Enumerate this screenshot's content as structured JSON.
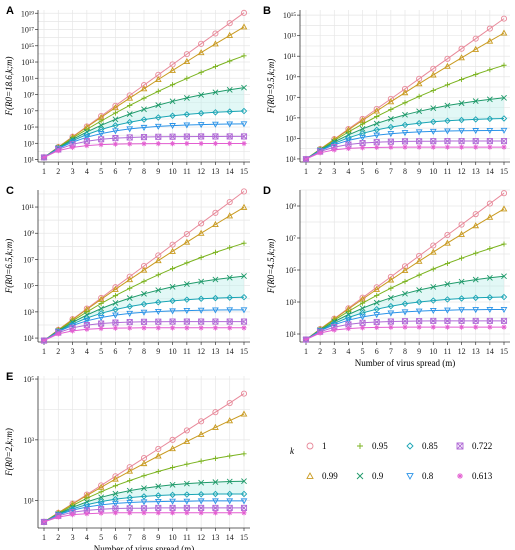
{
  "figure": {
    "x_axis_title": "Number of virus spread (m)",
    "legend": {
      "title": "k",
      "entries": [
        {
          "label": "1",
          "marker": "circle",
          "color": "#e8899a"
        },
        {
          "label": "0.99",
          "marker": "triangle",
          "color": "#c99a1f"
        },
        {
          "label": "0.95",
          "marker": "plus",
          "color": "#7bb31f"
        },
        {
          "label": "0.9",
          "marker": "x",
          "color": "#1f9a6a"
        },
        {
          "label": "0.85",
          "marker": "diamond",
          "color": "#1aa5b5"
        },
        {
          "label": "0.8",
          "marker": "triangle-down",
          "color": "#2a93e8"
        },
        {
          "label": "0.722",
          "marker": "square-x",
          "color": "#b06ad6"
        },
        {
          "label": "0.613",
          "marker": "asterisk",
          "color": "#e35fd1"
        }
      ]
    }
  },
  "chart_data": [
    {
      "panel": "A",
      "type": "line",
      "ylabel": "F(R0=18.6,k;m)",
      "yscale": "log",
      "x": [
        1,
        2,
        3,
        4,
        5,
        6,
        7,
        8,
        9,
        10,
        11,
        12,
        13,
        14,
        15
      ],
      "xlim": [
        1,
        15
      ],
      "ylim_exp": [
        0.7,
        19.4
      ],
      "yticks_exp": [
        1,
        3,
        5,
        7,
        9,
        11,
        13,
        15,
        17,
        19
      ],
      "grid": true,
      "series": [
        {
          "name": "1",
          "log10_values": [
            1.27,
            2.54,
            3.81,
            5.08,
            6.35,
            7.62,
            8.89,
            10.16,
            11.43,
            12.7,
            13.97,
            15.24,
            16.51,
            17.78,
            19.05
          ]
        },
        {
          "name": "0.99",
          "log10_values": [
            1.27,
            2.53,
            3.77,
            5.0,
            6.2,
            7.39,
            8.56,
            9.71,
            10.85,
            11.97,
            13.07,
            14.16,
            15.23,
            16.28,
            17.32
          ]
        },
        {
          "name": "0.95",
          "log10_values": [
            1.27,
            2.5,
            3.64,
            4.72,
            5.75,
            6.73,
            7.66,
            8.55,
            9.4,
            10.21,
            10.99,
            11.73,
            12.44,
            13.12,
            13.77
          ]
        },
        {
          "name": "0.9",
          "log10_values": [
            1.27,
            2.45,
            3.48,
            4.4,
            5.22,
            5.95,
            6.6,
            7.18,
            7.7,
            8.17,
            8.58,
            8.95,
            9.28,
            9.58,
            9.85
          ]
        },
        {
          "name": "0.85",
          "log10_values": [
            1.27,
            2.4,
            3.32,
            4.08,
            4.7,
            5.2,
            5.6,
            5.92,
            6.18,
            6.39,
            6.56,
            6.7,
            6.81,
            6.9,
            6.97
          ]
        },
        {
          "name": "0.8",
          "log10_values": [
            1.27,
            2.35,
            3.15,
            3.75,
            4.2,
            4.53,
            4.77,
            4.95,
            5.08,
            5.18,
            5.25,
            5.3,
            5.34,
            5.37,
            5.39
          ]
        },
        {
          "name": "0.722",
          "log10_values": [
            1.27,
            2.25,
            2.88,
            3.26,
            3.5,
            3.64,
            3.72,
            3.77,
            3.8,
            3.82,
            3.83,
            3.84,
            3.84,
            3.85,
            3.85
          ]
        },
        {
          "name": "0.613",
          "log10_values": [
            1.27,
            2.1,
            2.5,
            2.72,
            2.84,
            2.9,
            2.93,
            2.95,
            2.96,
            2.96,
            2.97,
            2.97,
            2.97,
            2.97,
            2.97
          ]
        }
      ]
    },
    {
      "panel": "B",
      "type": "line",
      "ylabel": "F(R0=9.5,k;m)",
      "yscale": "log",
      "x": [
        1,
        2,
        3,
        4,
        5,
        6,
        7,
        8,
        9,
        10,
        11,
        12,
        13,
        14,
        15
      ],
      "xlim": [
        1,
        15
      ],
      "ylim_exp": [
        0.7,
        15.5
      ],
      "yticks_exp": [
        1,
        3,
        5,
        7,
        9,
        11,
        13,
        15
      ],
      "grid": true,
      "series": [
        {
          "name": "1",
          "log10_values": [
            0.98,
            1.96,
            2.93,
            3.91,
            4.89,
            5.87,
            6.84,
            7.82,
            8.8,
            9.78,
            10.75,
            11.73,
            12.71,
            13.69,
            14.66
          ]
        },
        {
          "name": "0.99",
          "log10_values": [
            0.98,
            1.95,
            2.9,
            3.84,
            4.76,
            5.67,
            6.57,
            7.45,
            8.32,
            9.18,
            10.02,
            10.85,
            11.67,
            12.47,
            13.26
          ]
        },
        {
          "name": "0.95",
          "log10_values": [
            0.98,
            1.92,
            2.8,
            3.62,
            4.4,
            5.13,
            5.82,
            6.47,
            7.09,
            7.67,
            8.22,
            8.74,
            9.23,
            9.69,
            10.12
          ]
        },
        {
          "name": "0.9",
          "log10_values": [
            0.98,
            1.88,
            2.66,
            3.34,
            3.93,
            4.45,
            4.9,
            5.3,
            5.64,
            5.94,
            6.2,
            6.43,
            6.63,
            6.8,
            6.95
          ]
        },
        {
          "name": "0.85",
          "log10_values": [
            0.98,
            1.84,
            2.52,
            3.06,
            3.49,
            3.83,
            4.1,
            4.31,
            4.48,
            4.61,
            4.71,
            4.79,
            4.85,
            4.9,
            4.94
          ]
        },
        {
          "name": "0.8",
          "log10_values": [
            0.98,
            1.8,
            2.38,
            2.8,
            3.1,
            3.31,
            3.46,
            3.56,
            3.63,
            3.68,
            3.72,
            3.74,
            3.76,
            3.77,
            3.78
          ]
        },
        {
          "name": "0.722",
          "log10_values": [
            0.98,
            1.72,
            2.15,
            2.4,
            2.55,
            2.63,
            2.68,
            2.71,
            2.72,
            2.73,
            2.74,
            2.74,
            2.74,
            2.74,
            2.74
          ]
        },
        {
          "name": "0.613",
          "log10_values": [
            0.98,
            1.6,
            1.88,
            2.02,
            2.09,
            2.12,
            2.14,
            2.15,
            2.15,
            2.15,
            2.15,
            2.15,
            2.15,
            2.15,
            2.15
          ]
        }
      ]
    },
    {
      "panel": "C",
      "type": "line",
      "ylabel": "F(R0=6.5,k;m)",
      "yscale": "log",
      "x": [
        1,
        2,
        3,
        4,
        5,
        6,
        7,
        8,
        9,
        10,
        11,
        12,
        13,
        14,
        15
      ],
      "xlim": [
        1,
        15
      ],
      "ylim_exp": [
        0.7,
        12.3
      ],
      "yticks_exp": [
        1,
        3,
        5,
        7,
        9,
        11
      ],
      "grid": true,
      "series": [
        {
          "name": "1",
          "log10_values": [
            0.81,
            1.63,
            2.44,
            3.25,
            4.06,
            4.88,
            5.69,
            6.5,
            7.31,
            8.13,
            8.94,
            9.75,
            10.56,
            11.38,
            12.19
          ]
        },
        {
          "name": "0.99",
          "log10_values": [
            0.81,
            1.62,
            2.41,
            3.19,
            3.96,
            4.72,
            5.46,
            6.19,
            6.91,
            7.62,
            8.32,
            9.0,
            9.67,
            10.33,
            10.98
          ]
        },
        {
          "name": "0.95",
          "log10_values": [
            0.81,
            1.59,
            2.32,
            3.0,
            3.64,
            4.24,
            4.8,
            5.33,
            5.83,
            6.3,
            6.74,
            7.15,
            7.54,
            7.9,
            8.24
          ]
        },
        {
          "name": "0.9",
          "log10_values": [
            0.81,
            1.55,
            2.2,
            2.76,
            3.25,
            3.68,
            4.05,
            4.38,
            4.66,
            4.91,
            5.12,
            5.31,
            5.47,
            5.61,
            5.73
          ]
        },
        {
          "name": "0.85",
          "log10_values": [
            0.81,
            1.52,
            2.08,
            2.53,
            2.89,
            3.18,
            3.41,
            3.59,
            3.73,
            3.84,
            3.93,
            4.0,
            4.05,
            4.09,
            4.12
          ]
        },
        {
          "name": "0.8",
          "log10_values": [
            0.81,
            1.49,
            1.97,
            2.32,
            2.57,
            2.75,
            2.88,
            2.97,
            3.03,
            3.07,
            3.1,
            3.12,
            3.14,
            3.15,
            3.15
          ]
        },
        {
          "name": "0.722",
          "log10_values": [
            0.81,
            1.42,
            1.78,
            1.99,
            2.11,
            2.18,
            2.22,
            2.24,
            2.25,
            2.26,
            2.26,
            2.26,
            2.26,
            2.26,
            2.26
          ]
        },
        {
          "name": "0.613",
          "log10_values": [
            0.81,
            1.32,
            1.55,
            1.67,
            1.73,
            1.76,
            1.77,
            1.78,
            1.78,
            1.78,
            1.78,
            1.78,
            1.78,
            1.78,
            1.78
          ]
        }
      ]
    },
    {
      "panel": "D",
      "type": "line",
      "ylabel": "F(R0=4.5,k;m)",
      "yscale": "log",
      "x": [
        1,
        2,
        3,
        4,
        5,
        6,
        7,
        8,
        9,
        10,
        11,
        12,
        13,
        14,
        15
      ],
      "xlim": [
        1,
        15
      ],
      "ylim_exp": [
        0.5,
        10.0
      ],
      "yticks_exp": [
        1,
        3,
        5,
        7,
        9
      ],
      "grid": true,
      "series": [
        {
          "name": "1",
          "log10_values": [
            0.65,
            1.31,
            1.96,
            2.61,
            3.27,
            3.92,
            4.57,
            5.23,
            5.88,
            6.53,
            7.19,
            7.84,
            8.49,
            9.15,
            9.8
          ]
        },
        {
          "name": "0.99",
          "log10_values": [
            0.65,
            1.3,
            1.94,
            2.56,
            3.18,
            3.79,
            4.38,
            4.97,
            5.55,
            6.12,
            6.68,
            7.23,
            7.77,
            8.3,
            8.82
          ]
        },
        {
          "name": "0.95",
          "log10_values": [
            0.65,
            1.28,
            1.87,
            2.41,
            2.93,
            3.41,
            3.86,
            4.28,
            4.68,
            5.06,
            5.41,
            5.74,
            6.05,
            6.34,
            6.62
          ]
        },
        {
          "name": "0.9",
          "log10_values": [
            0.65,
            1.25,
            1.77,
            2.22,
            2.61,
            2.96,
            3.26,
            3.52,
            3.75,
            3.94,
            4.12,
            4.27,
            4.4,
            4.51,
            4.61
          ]
        },
        {
          "name": "0.85",
          "log10_values": [
            0.65,
            1.22,
            1.67,
            2.03,
            2.32,
            2.55,
            2.74,
            2.89,
            3.0,
            3.09,
            3.16,
            3.22,
            3.26,
            3.29,
            3.31
          ]
        },
        {
          "name": "0.8",
          "log10_values": [
            0.65,
            1.2,
            1.58,
            1.86,
            2.07,
            2.21,
            2.31,
            2.38,
            2.43,
            2.47,
            2.49,
            2.51,
            2.52,
            2.53,
            2.53
          ]
        },
        {
          "name": "0.722",
          "log10_values": [
            0.65,
            1.14,
            1.43,
            1.6,
            1.7,
            1.75,
            1.78,
            1.8,
            1.81,
            1.82,
            1.82,
            1.82,
            1.82,
            1.82,
            1.82
          ]
        },
        {
          "name": "0.613",
          "log10_values": [
            0.65,
            1.06,
            1.25,
            1.34,
            1.39,
            1.41,
            1.42,
            1.43,
            1.43,
            1.43,
            1.43,
            1.43,
            1.43,
            1.43,
            1.43
          ]
        }
      ]
    },
    {
      "panel": "E",
      "type": "line",
      "ylabel": "F(R0=2,k;m)",
      "yscale": "log",
      "x": [
        1,
        2,
        3,
        4,
        5,
        6,
        7,
        8,
        9,
        10,
        11,
        12,
        13,
        14,
        15
      ],
      "xlim": [
        1,
        15
      ],
      "ylim_exp": [
        0.1,
        5.1
      ],
      "yticks_exp": [
        1,
        3,
        5
      ],
      "grid": true,
      "series": [
        {
          "name": "1",
          "log10_values": [
            0.3,
            0.6,
            0.9,
            1.2,
            1.5,
            1.8,
            2.1,
            2.4,
            2.7,
            3.0,
            3.31,
            3.61,
            3.91,
            4.21,
            4.52
          ]
        },
        {
          "name": "0.99",
          "log10_values": [
            0.3,
            0.6,
            0.89,
            1.17,
            1.44,
            1.71,
            1.97,
            2.22,
            2.47,
            2.71,
            2.95,
            3.18,
            3.41,
            3.63,
            3.85
          ]
        },
        {
          "name": "0.95",
          "log10_values": [
            0.3,
            0.58,
            0.84,
            1.08,
            1.29,
            1.49,
            1.66,
            1.82,
            1.96,
            2.09,
            2.2,
            2.3,
            2.39,
            2.47,
            2.54
          ]
        },
        {
          "name": "0.9",
          "log10_values": [
            0.3,
            0.56,
            0.78,
            0.96,
            1.11,
            1.23,
            1.33,
            1.41,
            1.47,
            1.52,
            1.56,
            1.59,
            1.61,
            1.63,
            1.64
          ]
        },
        {
          "name": "0.85",
          "log10_values": [
            0.3,
            0.55,
            0.73,
            0.87,
            0.97,
            1.05,
            1.1,
            1.14,
            1.17,
            1.19,
            1.2,
            1.21,
            1.22,
            1.22,
            1.22
          ]
        },
        {
          "name": "0.8",
          "log10_values": [
            0.3,
            0.53,
            0.69,
            0.79,
            0.86,
            0.91,
            0.94,
            0.96,
            0.97,
            0.98,
            0.98,
            0.99,
            0.99,
            0.99,
            0.99
          ]
        },
        {
          "name": "0.722",
          "log10_values": [
            0.3,
            0.5,
            0.62,
            0.68,
            0.72,
            0.74,
            0.75,
            0.75,
            0.76,
            0.76,
            0.76,
            0.76,
            0.76,
            0.76,
            0.76
          ]
        },
        {
          "name": "0.613",
          "log10_values": [
            0.3,
            0.46,
            0.54,
            0.57,
            0.59,
            0.6,
            0.6,
            0.6,
            0.6,
            0.6,
            0.6,
            0.6,
            0.6,
            0.6,
            0.6
          ]
        }
      ]
    }
  ]
}
